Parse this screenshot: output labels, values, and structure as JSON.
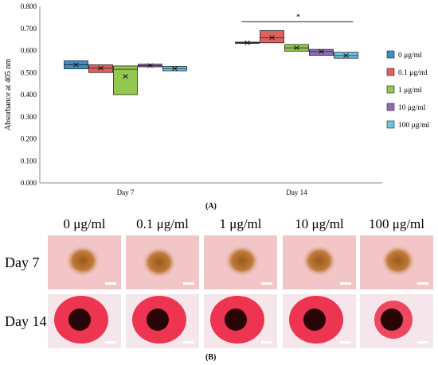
{
  "chart_data": {
    "type": "box",
    "ylabel": "Absorbance at 405 nm",
    "ylim": [
      0,
      0.8
    ],
    "yticks": [
      "0.000",
      "0.100",
      "0.200",
      "0.300",
      "0.400",
      "0.500",
      "0.600",
      "0.700",
      "0.800"
    ],
    "categories": [
      "Day 7",
      "Day 14"
    ],
    "series": [
      {
        "name": "0 μg/ml",
        "color": "#3c8fc4",
        "boxes": [
          {
            "q1": 0.517,
            "median": 0.535,
            "q3": 0.553,
            "mean": 0.535
          },
          {
            "q1": 0.632,
            "median": 0.635,
            "q3": 0.638,
            "mean": 0.635
          }
        ]
      },
      {
        "name": "0.1 μg/ml",
        "color": "#e0625e",
        "boxes": [
          {
            "q1": 0.5,
            "median": 0.52,
            "q3": 0.535,
            "mean": 0.52
          },
          {
            "q1": 0.635,
            "median": 0.658,
            "q3": 0.69,
            "mean": 0.658
          }
        ]
      },
      {
        "name": "1 μg/ml",
        "color": "#93c850",
        "boxes": [
          {
            "q1": 0.4,
            "median": 0.515,
            "q3": 0.53,
            "mean": 0.483
          },
          {
            "q1": 0.597,
            "median": 0.612,
            "q3": 0.627,
            "mean": 0.612
          }
        ]
      },
      {
        "name": "10 μg/ml",
        "color": "#8e6cb0",
        "boxes": [
          {
            "q1": 0.526,
            "median": 0.532,
            "q3": 0.538,
            "mean": 0.532
          },
          {
            "q1": 0.578,
            "median": 0.595,
            "q3": 0.605,
            "mean": 0.595
          }
        ]
      },
      {
        "name": "100 μg/ml",
        "color": "#6cc4df",
        "boxes": [
          {
            "q1": 0.508,
            "median": 0.518,
            "q3": 0.528,
            "mean": 0.518
          },
          {
            "q1": 0.565,
            "median": 0.577,
            "q3": 0.592,
            "mean": 0.577
          }
        ]
      }
    ],
    "significance": {
      "text": "*",
      "group": "Day 14"
    },
    "legend_position": "right",
    "panel_label": "(A)"
  },
  "photos": {
    "columns": [
      "0 μg/ml",
      "0.1 μg/ml",
      "1 μg/ml",
      "10 μg/ml",
      "100 μg/ml"
    ],
    "rows": [
      "Day 7",
      "Day 14"
    ],
    "panel_label": "(B)"
  }
}
